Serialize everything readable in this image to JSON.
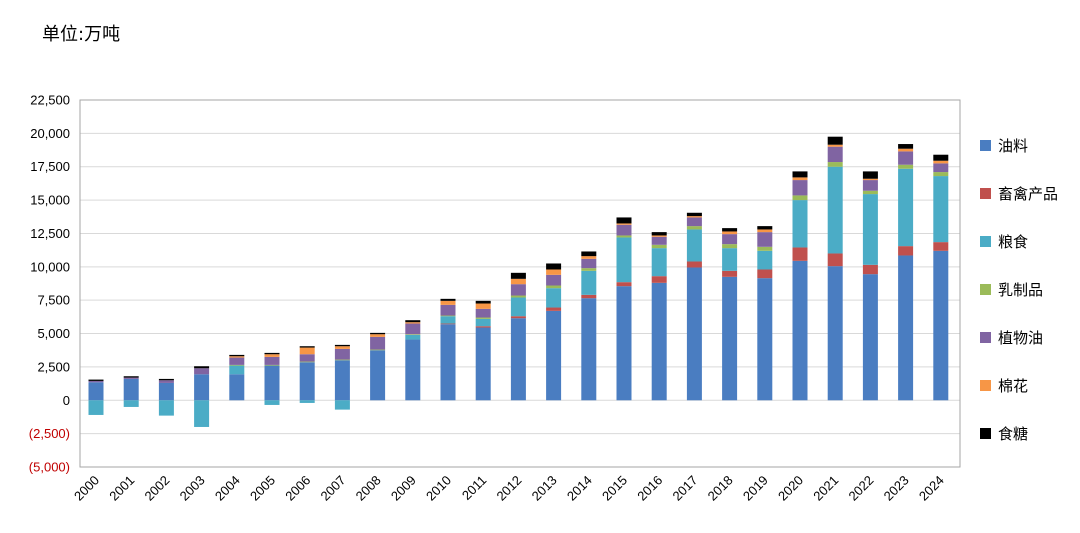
{
  "unit_label": "单位:万吨",
  "chart_data": {
    "type": "bar",
    "stacked": true,
    "title": "",
    "xlabel": "",
    "ylabel": "",
    "ylim": [
      -5000,
      22500
    ],
    "yticks": [
      -5000,
      -2500,
      0,
      2500,
      5000,
      7500,
      10000,
      12500,
      15000,
      17500,
      20000,
      22500
    ],
    "ytick_labels": [
      "(5,000)",
      "(2,500)",
      "0",
      "2,500",
      "5,000",
      "7,500",
      "10,000",
      "12,500",
      "15,000",
      "17,500",
      "20,000",
      "22,500"
    ],
    "grid": true,
    "legend_position": "right",
    "categories": [
      "2000",
      "2001",
      "2002",
      "2003",
      "2004",
      "2005",
      "2006",
      "2007",
      "2008",
      "2009",
      "2010",
      "2011",
      "2012",
      "2013",
      "2014",
      "2015",
      "2016",
      "2017",
      "2018",
      "2019",
      "2020",
      "2021",
      "2022",
      "2023",
      "2024"
    ],
    "series": [
      {
        "name": "油料",
        "color": "#4a7dc1",
        "values": [
          1350,
          1600,
          1300,
          1950,
          1950,
          2600,
          2850,
          3000,
          3750,
          4550,
          5700,
          5450,
          6150,
          6700,
          7650,
          8550,
          8800,
          9950,
          9250,
          9150,
          10450,
          10050,
          9450,
          10850,
          11200
        ]
      },
      {
        "name": "畜禽产品",
        "color": "#c0504d",
        "values": [
          0,
          0,
          0,
          0,
          0,
          0,
          0,
          0,
          0,
          0,
          50,
          100,
          150,
          250,
          250,
          300,
          500,
          450,
          450,
          650,
          1000,
          950,
          700,
          700,
          650
        ]
      },
      {
        "name": "粮食",
        "color": "#4bacc6",
        "values": [
          -1100,
          -500,
          -1150,
          -2000,
          650,
          -350,
          -200,
          -700,
          0,
          350,
          550,
          550,
          1400,
          1450,
          1800,
          3350,
          2100,
          2400,
          1700,
          1400,
          3550,
          6500,
          5300,
          5800,
          4950
        ]
      },
      {
        "name": "乳制品",
        "color": "#9bbb59",
        "values": [
          0,
          0,
          0,
          0,
          50,
          50,
          50,
          50,
          50,
          50,
          50,
          100,
          150,
          200,
          200,
          150,
          250,
          250,
          300,
          300,
          350,
          350,
          250,
          300,
          300
        ]
      },
      {
        "name": "植物油",
        "color": "#8064a2",
        "values": [
          100,
          100,
          200,
          450,
          550,
          600,
          550,
          800,
          950,
          800,
          800,
          650,
          850,
          800,
          700,
          800,
          600,
          650,
          750,
          1100,
          1150,
          1150,
          800,
          1000,
          650
        ]
      },
      {
        "name": "棉花",
        "color": "#f79646",
        "values": [
          0,
          0,
          0,
          0,
          100,
          200,
          500,
          200,
          200,
          100,
          300,
          400,
          400,
          400,
          200,
          100,
          100,
          100,
          200,
          200,
          200,
          150,
          100,
          200,
          200
        ]
      },
      {
        "name": "食糖",
        "color": "#000000",
        "values": [
          100,
          100,
          100,
          150,
          100,
          100,
          100,
          100,
          100,
          150,
          150,
          200,
          450,
          450,
          350,
          450,
          250,
          250,
          250,
          250,
          450,
          600,
          550,
          350,
          450
        ]
      }
    ]
  }
}
